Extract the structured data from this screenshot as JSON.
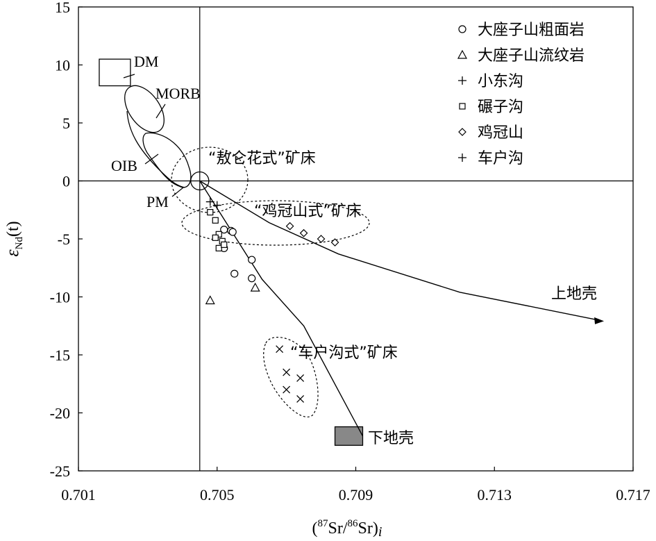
{
  "chart_data": {
    "type": "scatter",
    "xlabel": {
      "prefix": "(",
      "sup1": "87",
      "mid": "Sr/",
      "sup2": "86",
      "suffix": "Sr)",
      "sub": "i"
    },
    "ylabel": {
      "main": "ε",
      "sub": "Nd",
      "suffix": "(t)"
    },
    "xlim": [
      0.701,
      0.717
    ],
    "ylim": [
      -25,
      15
    ],
    "x_ticks": [
      "0.701",
      "0.705",
      "0.709",
      "0.713",
      "0.717"
    ],
    "y_ticks": [
      "15",
      "10",
      "5",
      "0",
      "-5",
      "-10",
      "-15",
      "-20",
      "-25"
    ],
    "grid": false,
    "reference_lines": {
      "x": 0.7045,
      "y": 0
    },
    "legend_position": "top-right",
    "series": [
      {
        "name": "大座子山粗面岩",
        "marker": "circle",
        "points": [
          [
            0.7052,
            -4.2
          ],
          [
            0.7054,
            -4.3
          ],
          [
            0.70545,
            -4.4
          ],
          [
            0.7052,
            -5.8
          ],
          [
            0.706,
            -6.8
          ],
          [
            0.7055,
            -8.0
          ],
          [
            0.706,
            -8.4
          ]
        ]
      },
      {
        "name": "大座子山流纹岩",
        "marker": "triangle",
        "points": [
          [
            0.7048,
            -10.3
          ],
          [
            0.7061,
            -9.2
          ]
        ]
      },
      {
        "name": "小东沟",
        "marker": "plus",
        "points": [
          [
            0.7048,
            -1.8
          ]
        ]
      },
      {
        "name": "碾子沟",
        "marker": "square",
        "points": [
          [
            0.7048,
            -2.7
          ],
          [
            0.70495,
            -3.4
          ],
          [
            0.70505,
            -4.6
          ],
          [
            0.70495,
            -4.9
          ],
          [
            0.70515,
            -5.2
          ],
          [
            0.70505,
            -5.8
          ],
          [
            0.7052,
            -5.5
          ]
        ]
      },
      {
        "name": "鸡冠山",
        "marker": "diamond",
        "points": [
          [
            0.7071,
            -3.9
          ],
          [
            0.7075,
            -4.5
          ],
          [
            0.708,
            -5.0
          ],
          [
            0.7084,
            -5.3
          ]
        ]
      },
      {
        "name": "车户沟",
        "marker": "plus",
        "points": [
          [
            0.705,
            -2.1
          ]
        ]
      },
      {
        "name": "",
        "marker": "cross",
        "points": [
          [
            0.7068,
            -14.5
          ],
          [
            0.707,
            -16.5
          ],
          [
            0.7074,
            -17.0
          ],
          [
            0.707,
            -18.0
          ],
          [
            0.7074,
            -18.8
          ]
        ]
      }
    ],
    "annotations": {
      "dm": "DM",
      "morb": "MORB",
      "oib": "OIB",
      "pm": "PM",
      "upper_crust": "上地壳",
      "lower_crust": "下地壳",
      "aolunhua": "“敖仑花式”矿床",
      "jiguanshan": "“鸡冠山式”矿床",
      "chehugou": "“车户沟式”矿床"
    },
    "curves": {
      "pm_to_upper_crust": [
        [
          0.7045,
          0
        ],
        [
          0.7065,
          -3.6
        ],
        [
          0.7085,
          -6.3
        ],
        [
          0.712,
          -9.6
        ],
        [
          0.716,
          -12.0
        ]
      ],
      "pm_to_lower_crust": [
        [
          0.7045,
          0
        ],
        [
          0.7063,
          -8.5
        ],
        [
          0.7075,
          -12.5
        ],
        [
          0.7092,
          -22.0
        ]
      ]
    },
    "regions": {
      "dm_box": {
        "x": [
          0.7016,
          0.7025
        ],
        "y": [
          8.2,
          10.5
        ]
      },
      "lower_crust_box": {
        "x": [
          0.7084,
          0.7092
        ],
        "y": [
          -22.8,
          -21.2
        ]
      }
    }
  }
}
